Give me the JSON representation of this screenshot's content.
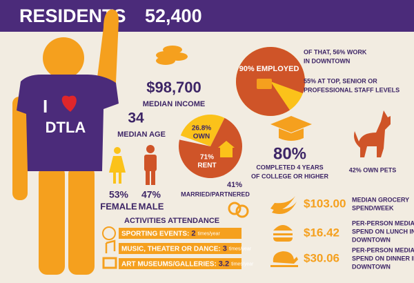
{
  "header": {
    "title": "RESIDENTS",
    "count": "52,400"
  },
  "shirt": {
    "letter": "I",
    "text": "DTLA"
  },
  "income": {
    "value": "$98,700",
    "label": "MEDIAN INCOME"
  },
  "age": {
    "value": "34",
    "label": "MEDIAN AGE"
  },
  "gender": [
    {
      "value": "53%",
      "label": "FEMALE"
    },
    {
      "value": "47%",
      "label": "MALE"
    }
  ],
  "employment": {
    "value": 90,
    "label": "90% EMPLOYED",
    "notes": [
      [
        "OF THAT, 56% WORK",
        "IN DOWNTOWN"
      ],
      [
        "55% AT TOP, SENIOR OR",
        "PROFESSIONAL STAFF LEVELS"
      ]
    ]
  },
  "housing": {
    "slices": [
      {
        "label": "OWN",
        "value": 26.8,
        "value_label": "26.8%"
      },
      {
        "label": "RENT",
        "value": 71,
        "value_label": "71%"
      }
    ]
  },
  "education": {
    "value": "80%",
    "lines": [
      "COMPLETED 4 YEARS",
      "OF COLLEGE OR HIGHER"
    ]
  },
  "pets": "42% OWN PETS",
  "married": {
    "value": "41%",
    "label": "MARRIED/PARTNERED"
  },
  "spending": [
    {
      "amount": "$103.00",
      "lines": [
        "MEDIAN GROCERY",
        "SPEND/WEEK"
      ]
    },
    {
      "amount": "$16.42",
      "lines": [
        "PER-PERSON MEDIAN",
        "SPEND ON LUNCH IN",
        "DOWNTOWN"
      ]
    },
    {
      "amount": "$30.06",
      "lines": [
        "PER-PERSON MEDIAN",
        "SPEND ON DINNER IN",
        "DOWNTOWN"
      ]
    }
  ],
  "activities": {
    "title": "ACTIVITIES ATTENDANCE",
    "items": [
      {
        "label": "SPORTING EVENTS:",
        "value": 2,
        "unit": "times/year"
      },
      {
        "label": "MUSIC, THEATER OR DANCE:",
        "value": 3,
        "unit": "times/year"
      },
      {
        "label": "ART MUSEUMS/GALLERIES:",
        "value": 3.2,
        "unit": "times/year"
      }
    ]
  }
}
